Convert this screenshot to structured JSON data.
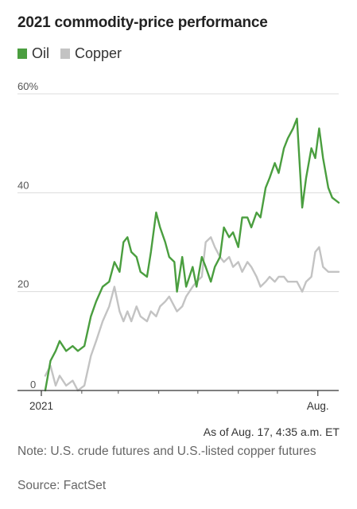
{
  "title": "2021 commodity-price performance",
  "legend": [
    {
      "label": "Oil",
      "color": "#4a9e3f"
    },
    {
      "label": "Copper",
      "color": "#c3c3c3"
    }
  ],
  "timestamp": "As of Aug. 17, 4:35 a.m. ET",
  "note": "Note: U.S. crude futures and U.S.-listed copper futures",
  "source": "Source: FactSet",
  "chart_data": {
    "type": "line",
    "title": "2021 commodity-price performance",
    "x_range": [
      "2021-01-01",
      "2021-08-17"
    ],
    "x_ticks": [
      {
        "date": "2021-01-01",
        "label": "2021"
      },
      {
        "date": "2021-08-01",
        "label": "Aug."
      }
    ],
    "y_ticks": [
      {
        "value": 0,
        "label": "0"
      },
      {
        "value": 20,
        "label": "20"
      },
      {
        "value": 40,
        "label": "40"
      },
      {
        "value": 60,
        "label": "60%"
      }
    ],
    "ylim": [
      0,
      60
    ],
    "grid": "horizontal",
    "legend_position": "top-left",
    "series": [
      {
        "name": "Oil",
        "color": "#4a9e3f",
        "points": [
          [
            "2021-01-04",
            0
          ],
          [
            "2021-01-06",
            3
          ],
          [
            "2021-01-08",
            6
          ],
          [
            "2021-01-12",
            8
          ],
          [
            "2021-01-15",
            10
          ],
          [
            "2021-01-20",
            8
          ],
          [
            "2021-01-25",
            9
          ],
          [
            "2021-01-29",
            8
          ],
          [
            "2021-02-03",
            9
          ],
          [
            "2021-02-08",
            15
          ],
          [
            "2021-02-12",
            18
          ],
          [
            "2021-02-17",
            21
          ],
          [
            "2021-02-22",
            22
          ],
          [
            "2021-02-26",
            26
          ],
          [
            "2021-03-02",
            24
          ],
          [
            "2021-03-05",
            30
          ],
          [
            "2021-03-08",
            31
          ],
          [
            "2021-03-11",
            28
          ],
          [
            "2021-03-15",
            27
          ],
          [
            "2021-03-18",
            24
          ],
          [
            "2021-03-23",
            23
          ],
          [
            "2021-03-26",
            28
          ],
          [
            "2021-03-30",
            36
          ],
          [
            "2021-04-02",
            33
          ],
          [
            "2021-04-06",
            30
          ],
          [
            "2021-04-09",
            27
          ],
          [
            "2021-04-13",
            26
          ],
          [
            "2021-04-15",
            20
          ],
          [
            "2021-04-19",
            27
          ],
          [
            "2021-04-22",
            21
          ],
          [
            "2021-04-27",
            25
          ],
          [
            "2021-04-30",
            21
          ],
          [
            "2021-05-04",
            27
          ],
          [
            "2021-05-07",
            25
          ],
          [
            "2021-05-11",
            22
          ],
          [
            "2021-05-14",
            25
          ],
          [
            "2021-05-18",
            27
          ],
          [
            "2021-05-21",
            33
          ],
          [
            "2021-05-25",
            31
          ],
          [
            "2021-05-28",
            32
          ],
          [
            "2021-06-01",
            29
          ],
          [
            "2021-06-04",
            35
          ],
          [
            "2021-06-08",
            35
          ],
          [
            "2021-06-11",
            33
          ],
          [
            "2021-06-15",
            36
          ],
          [
            "2021-06-18",
            35
          ],
          [
            "2021-06-22",
            41
          ],
          [
            "2021-06-25",
            43
          ],
          [
            "2021-06-29",
            46
          ],
          [
            "2021-07-02",
            44
          ],
          [
            "2021-07-06",
            49
          ],
          [
            "2021-07-09",
            51
          ],
          [
            "2021-07-13",
            53
          ],
          [
            "2021-07-16",
            55
          ],
          [
            "2021-07-20",
            37
          ],
          [
            "2021-07-23",
            43
          ],
          [
            "2021-07-27",
            49
          ],
          [
            "2021-07-30",
            47
          ],
          [
            "2021-08-02",
            53
          ],
          [
            "2021-08-05",
            47
          ],
          [
            "2021-08-09",
            41
          ],
          [
            "2021-08-12",
            39
          ],
          [
            "2021-08-17",
            38
          ]
        ]
      },
      {
        "name": "Copper",
        "color": "#c3c3c3",
        "points": [
          [
            "2021-01-04",
            3
          ],
          [
            "2021-01-08",
            5
          ],
          [
            "2021-01-12",
            1
          ],
          [
            "2021-01-15",
            3
          ],
          [
            "2021-01-20",
            1
          ],
          [
            "2021-01-25",
            2
          ],
          [
            "2021-01-29",
            0
          ],
          [
            "2021-02-03",
            1
          ],
          [
            "2021-02-08",
            7
          ],
          [
            "2021-02-12",
            10
          ],
          [
            "2021-02-17",
            14
          ],
          [
            "2021-02-22",
            17
          ],
          [
            "2021-02-26",
            21
          ],
          [
            "2021-03-02",
            16
          ],
          [
            "2021-03-05",
            14
          ],
          [
            "2021-03-08",
            16
          ],
          [
            "2021-03-11",
            14
          ],
          [
            "2021-03-15",
            17
          ],
          [
            "2021-03-18",
            15
          ],
          [
            "2021-03-23",
            14
          ],
          [
            "2021-03-26",
            16
          ],
          [
            "2021-03-30",
            15
          ],
          [
            "2021-04-02",
            17
          ],
          [
            "2021-04-06",
            18
          ],
          [
            "2021-04-09",
            19
          ],
          [
            "2021-04-13",
            17
          ],
          [
            "2021-04-15",
            16
          ],
          [
            "2021-04-19",
            17
          ],
          [
            "2021-04-22",
            19
          ],
          [
            "2021-04-27",
            21
          ],
          [
            "2021-04-30",
            22
          ],
          [
            "2021-05-04",
            23
          ],
          [
            "2021-05-07",
            30
          ],
          [
            "2021-05-11",
            31
          ],
          [
            "2021-05-14",
            29
          ],
          [
            "2021-05-18",
            27
          ],
          [
            "2021-05-21",
            26
          ],
          [
            "2021-05-25",
            27
          ],
          [
            "2021-05-28",
            25
          ],
          [
            "2021-06-01",
            26
          ],
          [
            "2021-06-04",
            24
          ],
          [
            "2021-06-08",
            26
          ],
          [
            "2021-06-11",
            25
          ],
          [
            "2021-06-15",
            23
          ],
          [
            "2021-06-18",
            21
          ],
          [
            "2021-06-22",
            22
          ],
          [
            "2021-06-25",
            23
          ],
          [
            "2021-06-29",
            22
          ],
          [
            "2021-07-02",
            23
          ],
          [
            "2021-07-06",
            23
          ],
          [
            "2021-07-09",
            22
          ],
          [
            "2021-07-13",
            22
          ],
          [
            "2021-07-16",
            22
          ],
          [
            "2021-07-20",
            20
          ],
          [
            "2021-07-23",
            22
          ],
          [
            "2021-07-27",
            23
          ],
          [
            "2021-07-30",
            28
          ],
          [
            "2021-08-02",
            29
          ],
          [
            "2021-08-05",
            25
          ],
          [
            "2021-08-09",
            24
          ],
          [
            "2021-08-12",
            24
          ],
          [
            "2021-08-17",
            24
          ]
        ]
      }
    ]
  }
}
